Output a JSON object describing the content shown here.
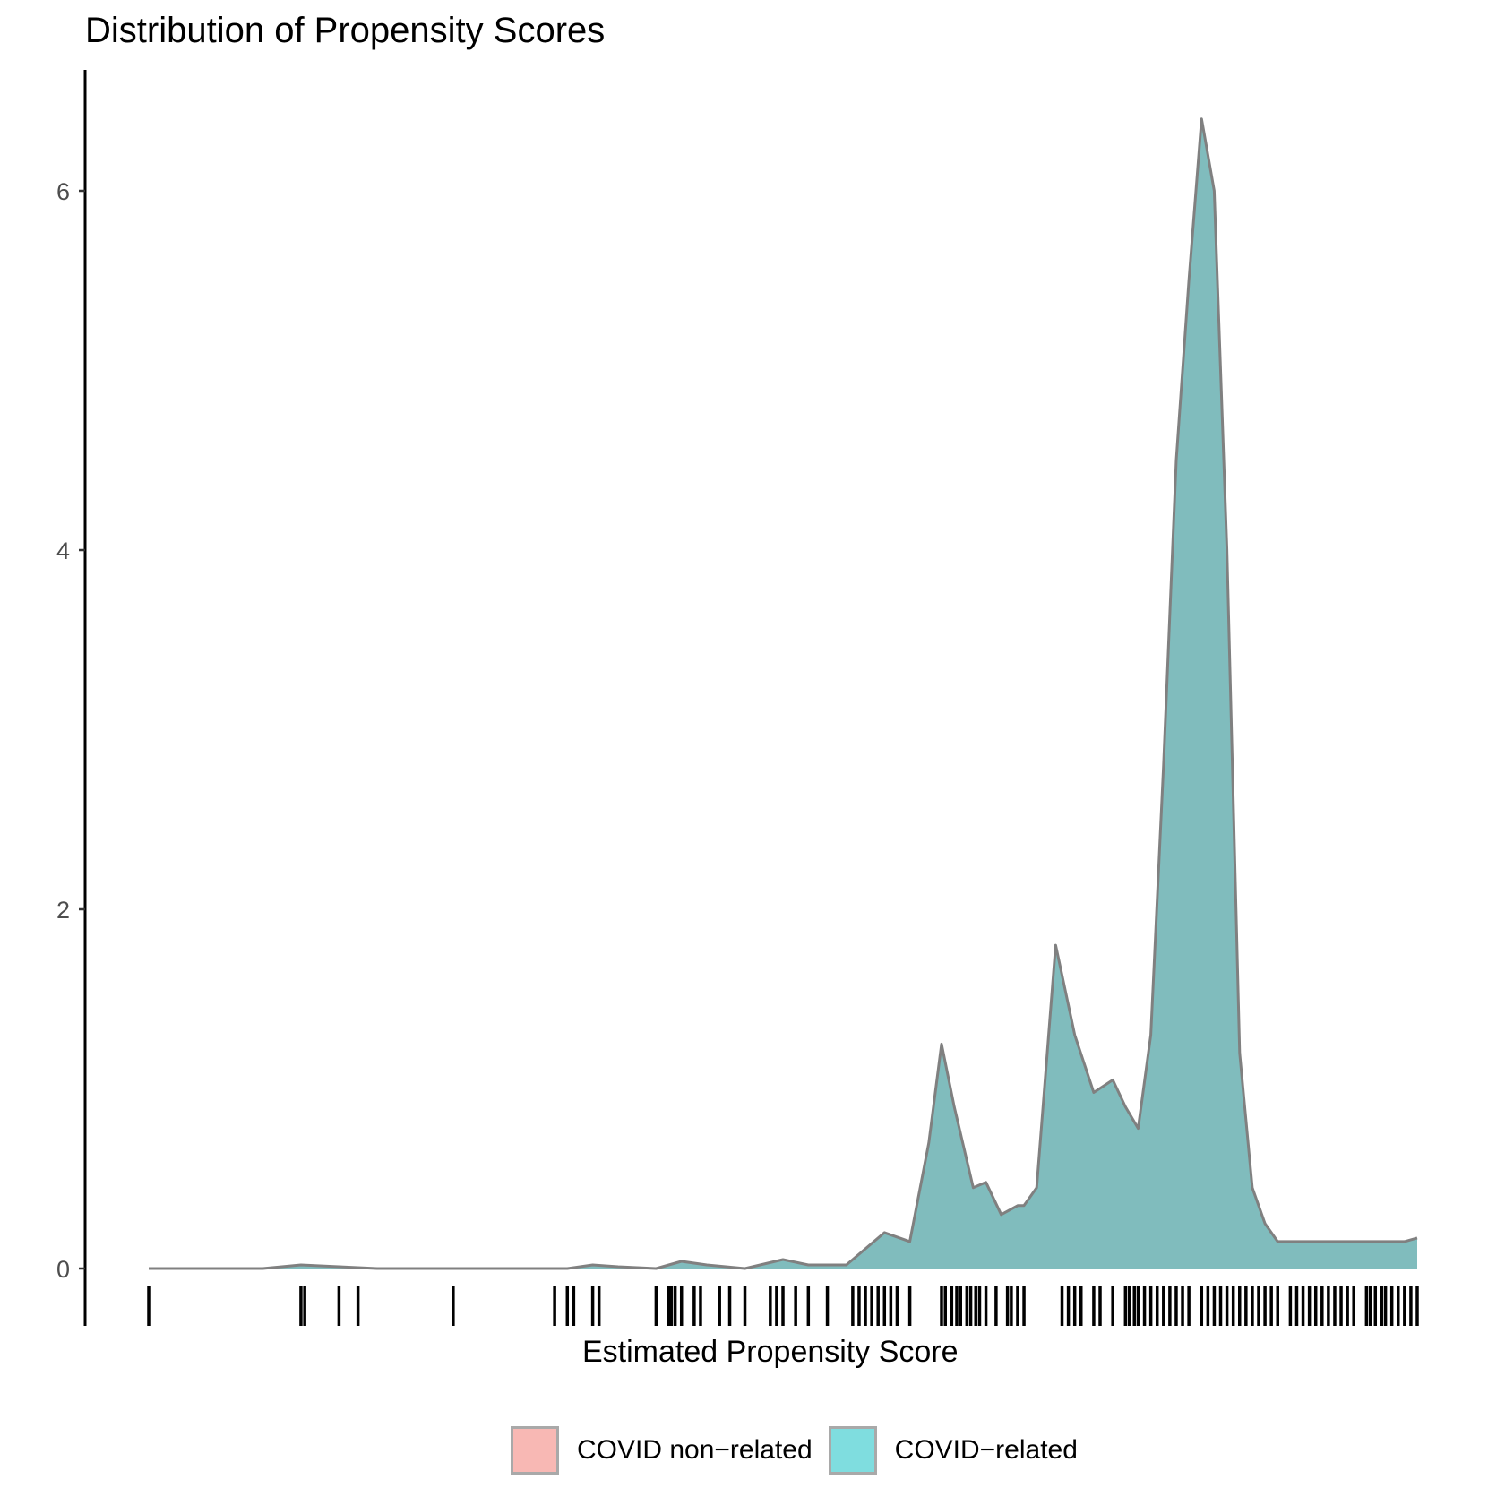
{
  "chart_data": {
    "type": "area",
    "title": "Distribution of Propensity Scores",
    "xlabel": "Estimated Propensity Score",
    "ylabel": "",
    "ylim": [
      0,
      6.5
    ],
    "xlim": [
      0,
      1
    ],
    "y_ticks": [
      0,
      2,
      4,
      6
    ],
    "grid": false,
    "legend_position": "bottom",
    "legend": [
      {
        "label": "COVID non−related",
        "color": "#F8B8B4"
      },
      {
        "label": "COVID−related",
        "color": "#7FDDDF"
      }
    ],
    "series": [
      {
        "name": "COVID−related",
        "fill_color": "#80BCBD",
        "line_color": "#808080",
        "x": [
          0.0,
          0.03,
          0.06,
          0.09,
          0.12,
          0.15,
          0.18,
          0.21,
          0.24,
          0.27,
          0.3,
          0.33,
          0.35,
          0.37,
          0.4,
          0.42,
          0.44,
          0.47,
          0.5,
          0.52,
          0.55,
          0.58,
          0.6,
          0.615,
          0.625,
          0.635,
          0.65,
          0.66,
          0.672,
          0.685,
          0.69,
          0.7,
          0.715,
          0.73,
          0.745,
          0.76,
          0.77,
          0.78,
          0.79,
          0.8,
          0.81,
          0.82,
          0.83,
          0.84,
          0.85,
          0.86,
          0.87,
          0.88,
          0.89,
          0.9,
          0.91,
          0.92,
          0.93,
          0.94,
          0.95,
          0.96,
          0.97,
          0.98,
          0.99,
          1.0
        ],
        "y": [
          0.0,
          0.0,
          0.0,
          0.0,
          0.02,
          0.01,
          0.0,
          0.0,
          0.0,
          0.0,
          0.0,
          0.0,
          0.02,
          0.01,
          0.0,
          0.04,
          0.02,
          0.0,
          0.05,
          0.02,
          0.02,
          0.2,
          0.15,
          0.7,
          1.25,
          0.9,
          0.45,
          0.48,
          0.3,
          0.35,
          0.35,
          0.45,
          1.8,
          1.3,
          0.98,
          1.05,
          0.9,
          0.78,
          1.3,
          2.8,
          4.5,
          5.5,
          6.4,
          6.0,
          4.0,
          1.2,
          0.45,
          0.25,
          0.15,
          0.15,
          0.15,
          0.15,
          0.15,
          0.15,
          0.15,
          0.15,
          0.15,
          0.15,
          0.15,
          0.17
        ]
      }
    ],
    "rug_x": [
      0.0,
      0.12,
      0.123,
      0.15,
      0.165,
      0.24,
      0.32,
      0.33,
      0.335,
      0.35,
      0.355,
      0.4,
      0.41,
      0.412,
      0.415,
      0.42,
      0.43,
      0.435,
      0.45,
      0.458,
      0.47,
      0.49,
      0.495,
      0.5,
      0.51,
      0.52,
      0.535,
      0.555,
      0.56,
      0.565,
      0.57,
      0.575,
      0.58,
      0.585,
      0.59,
      0.6,
      0.625,
      0.628,
      0.633,
      0.637,
      0.64,
      0.645,
      0.648,
      0.652,
      0.655,
      0.66,
      0.668,
      0.677,
      0.68,
      0.685,
      0.69,
      0.72,
      0.725,
      0.73,
      0.735,
      0.745,
      0.75,
      0.76,
      0.77,
      0.773,
      0.777,
      0.78,
      0.785,
      0.79,
      0.795,
      0.8,
      0.805,
      0.81,
      0.815,
      0.82,
      0.83,
      0.835,
      0.84,
      0.845,
      0.85,
      0.855,
      0.86,
      0.865,
      0.87,
      0.875,
      0.88,
      0.885,
      0.89,
      0.9,
      0.905,
      0.91,
      0.915,
      0.92,
      0.925,
      0.93,
      0.935,
      0.94,
      0.945,
      0.95,
      0.96,
      0.963,
      0.967,
      0.972,
      0.975,
      0.98,
      0.985,
      0.99,
      0.995,
      1.0
    ]
  }
}
